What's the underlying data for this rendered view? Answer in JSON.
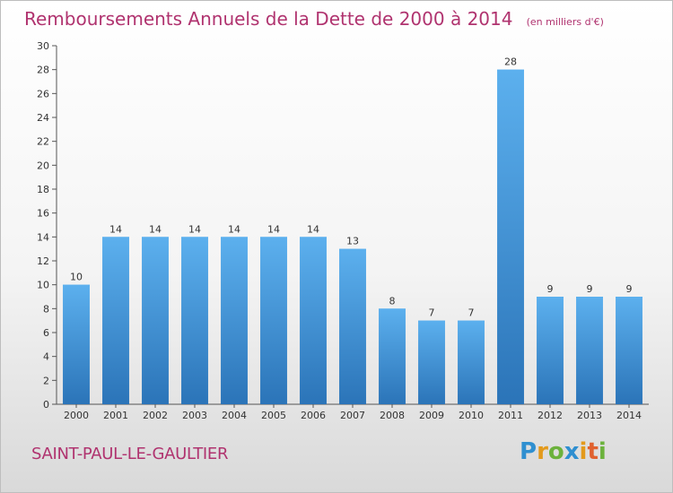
{
  "header": {
    "title": "Remboursements Annuels de la Dette de 2000 à 2014",
    "unit": "(en milliers d'€)"
  },
  "footer": {
    "commune": "SAINT-PAUL-LE-GAULTIER",
    "logo": {
      "letters": [
        "P",
        "r",
        "o",
        "x",
        "i",
        "t",
        "i"
      ],
      "colors": [
        "#2f8fd0",
        "#e39a1c",
        "#6cb23c",
        "#2f8fd0",
        "#e39a1c",
        "#e0612f",
        "#6cb23c"
      ]
    }
  },
  "chart_data": {
    "type": "bar",
    "title": "Remboursements Annuels de la Dette de 2000 à 2014",
    "subtitle": "(en milliers d'€)",
    "xlabel": "",
    "ylabel": "",
    "categories": [
      "2000",
      "2001",
      "2002",
      "2003",
      "2004",
      "2005",
      "2006",
      "2007",
      "2008",
      "2009",
      "2010",
      "2011",
      "2012",
      "2013",
      "2014"
    ],
    "values": [
      10,
      14,
      14,
      14,
      14,
      14,
      14,
      13,
      8,
      7,
      7,
      28,
      9,
      9,
      9
    ],
    "ylim": [
      0,
      30
    ],
    "yticks": [
      0,
      2,
      4,
      6,
      8,
      10,
      12,
      14,
      16,
      18,
      20,
      22,
      24,
      26,
      28,
      30
    ],
    "grid": false,
    "bar_color": "#3d8fd6",
    "bar_color_light": "#5cb0ee",
    "bar_color_dark": "#2b74b8"
  }
}
